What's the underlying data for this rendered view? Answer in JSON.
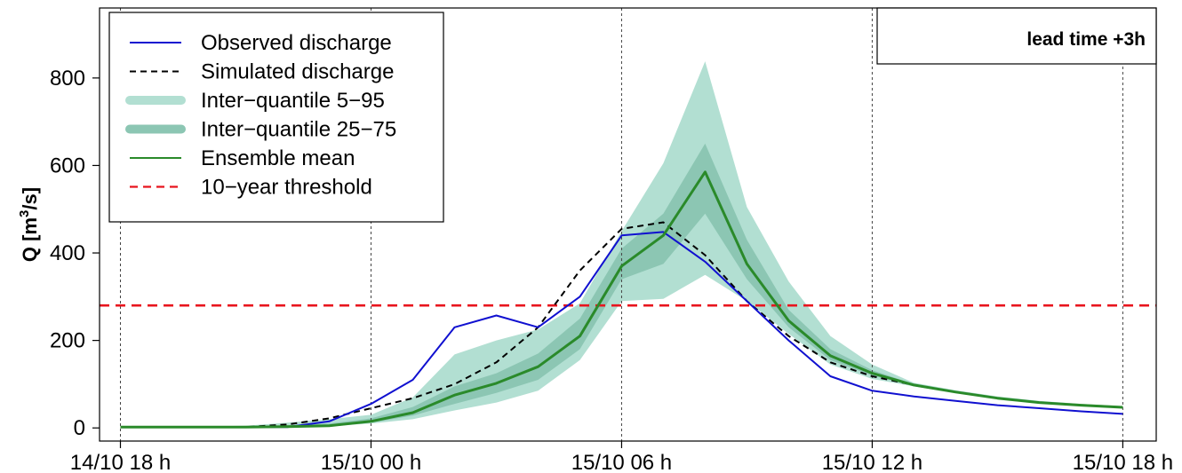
{
  "chart_data": {
    "type": "line",
    "ylabel": {
      "prefix": "Q [m",
      "sup": "3",
      "suffix": "/s]"
    },
    "ylim": [
      -30,
      960
    ],
    "yticks": [
      0,
      200,
      400,
      600,
      800
    ],
    "xlim": [
      -0.5,
      24.8
    ],
    "xticks": [
      {
        "x": 0,
        "label": "14/10 18 h"
      },
      {
        "x": 6,
        "label": "15/10 00 h"
      },
      {
        "x": 12,
        "label": "15/10 06 h"
      },
      {
        "x": 18,
        "label": "15/10 12 h"
      },
      {
        "x": 24,
        "label": "15/10 18 h"
      }
    ],
    "annotation": "lead time +3h",
    "legend_position": "top-left",
    "colors": {
      "observed": "#1010d0",
      "simulated": "#000000",
      "q5_95": "#b2dfd2",
      "q25_75": "#8cc6b3",
      "mean": "#2a8a2a",
      "threshold": "#e8141e"
    },
    "x": [
      0,
      1,
      2,
      3,
      4,
      5,
      6,
      7,
      8,
      9,
      10,
      11,
      12,
      13,
      14,
      15,
      16,
      17,
      18,
      19,
      20,
      21,
      22,
      23,
      24
    ],
    "series": [
      {
        "name": "Observed discharge",
        "key": "observed",
        "style": "solid",
        "values": [
          2,
          2,
          2,
          2,
          2,
          15,
          55,
          110,
          230,
          257,
          230,
          300,
          440,
          448,
          380,
          290,
          200,
          118,
          85,
          72,
          62,
          52,
          45,
          38,
          32
        ]
      },
      {
        "name": "Simulated discharge",
        "key": "simulated",
        "style": "dashed",
        "values": [
          2,
          2,
          2,
          2,
          8,
          22,
          45,
          68,
          100,
          150,
          230,
          360,
          455,
          470,
          395,
          290,
          210,
          150,
          118,
          98,
          82,
          68,
          58,
          52,
          47
        ]
      },
      {
        "name": "Ensemble mean",
        "key": "mean",
        "style": "solid",
        "values": [
          2,
          2,
          2,
          2,
          3,
          5,
          15,
          35,
          75,
          102,
          140,
          210,
          370,
          440,
          585,
          375,
          245,
          165,
          125,
          98,
          82,
          68,
          58,
          52,
          47
        ]
      }
    ],
    "bands": [
      {
        "name": "Inter−quantile 5−95",
        "key": "q5_95",
        "lower": [
          0,
          0,
          0,
          0,
          2,
          4,
          10,
          20,
          40,
          58,
          85,
          155,
          290,
          295,
          350,
          290,
          215,
          145,
          112,
          95,
          80,
          66,
          56,
          50,
          45
        ],
        "upper": [
          3,
          3,
          3,
          5,
          12,
          20,
          30,
          70,
          168,
          200,
          225,
          285,
          450,
          605,
          838,
          505,
          335,
          210,
          145,
          103,
          86,
          72,
          62,
          55,
          50
        ]
      },
      {
        "name": "Inter−quantile 25−75",
        "key": "q25_75",
        "lower": [
          1,
          1,
          1,
          1,
          3,
          4,
          12,
          28,
          55,
          80,
          110,
          180,
          340,
          375,
          490,
          340,
          230,
          155,
          120,
          96,
          80,
          67,
          57,
          51,
          46
        ],
        "upper": [
          2,
          2,
          2,
          3,
          6,
          10,
          22,
          48,
          95,
          125,
          170,
          250,
          410,
          490,
          650,
          430,
          270,
          180,
          132,
          100,
          84,
          70,
          60,
          53,
          48
        ]
      }
    ],
    "threshold": {
      "name": "10−year threshold",
      "key": "threshold",
      "value": 280
    }
  }
}
